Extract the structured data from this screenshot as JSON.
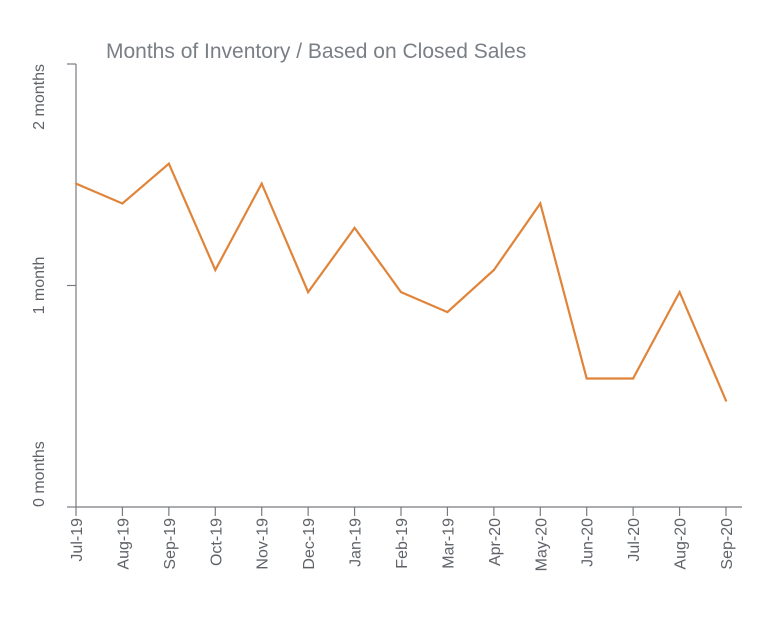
{
  "chart_data": {
    "type": "line",
    "title": "Months of Inventory / Based on Closed Sales",
    "xlabel": "",
    "ylabel": "",
    "categories": [
      "Jul-19",
      "Aug-19",
      "Sep-19",
      "Oct-19",
      "Nov-19",
      "Dec-19",
      "Jan-19",
      "Feb-19",
      "Mar-19",
      "Apr-20",
      "May-20",
      "Jun-20",
      "Jul-20",
      "Aug-20",
      "Sep-20"
    ],
    "y_ticks": [
      {
        "value": 0,
        "label": "0 months"
      },
      {
        "value": 1,
        "label": "1 month"
      },
      {
        "value": 2,
        "label": "2 months"
      }
    ],
    "ylim": [
      0,
      2
    ],
    "grid": false,
    "series": [
      {
        "color": "#e0843a",
        "values": [
          1.46,
          1.37,
          1.55,
          1.07,
          1.46,
          0.97,
          1.26,
          0.97,
          0.88,
          1.07,
          1.37,
          0.58,
          0.58,
          0.97,
          0.48
        ]
      }
    ]
  }
}
